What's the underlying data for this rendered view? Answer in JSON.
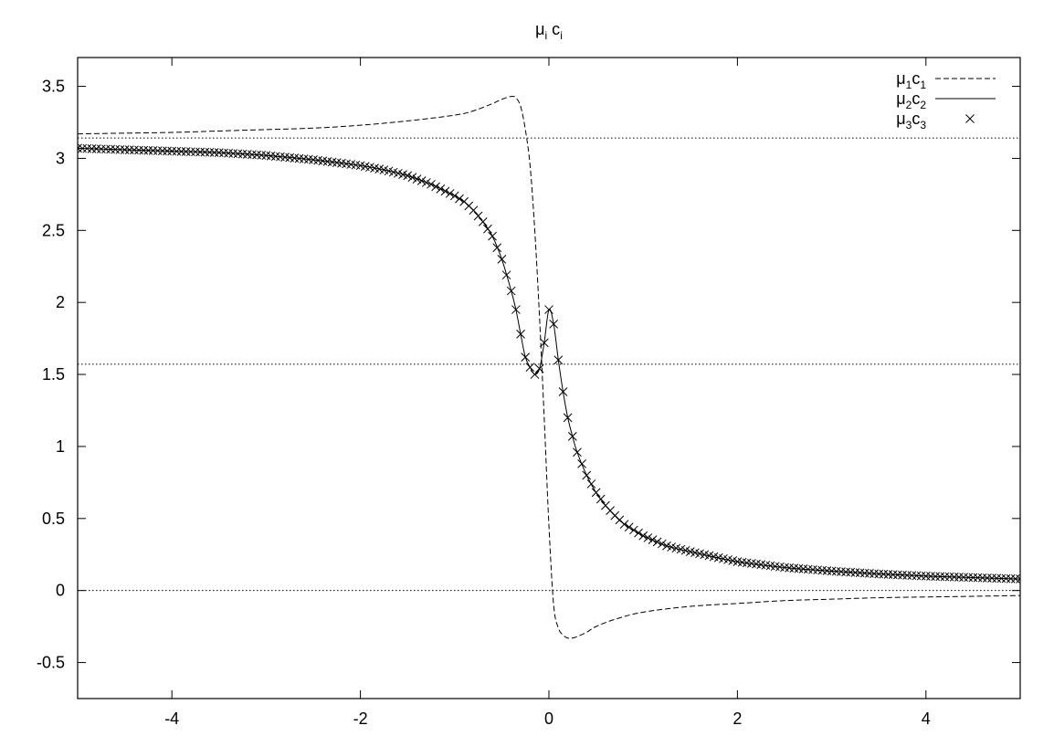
{
  "chart_data": {
    "type": "line",
    "title": {
      "base1": "μ",
      "sub1": "i",
      "base2": " c",
      "sub2": "i"
    },
    "xlabel": "",
    "ylabel": "",
    "xlim": [
      -5,
      5
    ],
    "ylim": [
      -0.75,
      3.7
    ],
    "x_ticks": [
      -4,
      -2,
      0,
      2,
      4
    ],
    "x_tick_labels": [
      "-4",
      "-2",
      "0",
      "2",
      "4"
    ],
    "y_ticks": [
      -0.5,
      0,
      0.5,
      1,
      1.5,
      2,
      2.5,
      3,
      3.5
    ],
    "y_tick_labels": [
      "-0.5",
      "0",
      "0.5",
      "1",
      "1.5",
      "2",
      "2.5",
      "3",
      "3.5"
    ],
    "reference_lines": [
      0,
      1.5708,
      3.1416
    ],
    "grid": false,
    "legend_position": "top-right",
    "series": [
      {
        "key": "mu1c1",
        "label": {
          "a": "μ",
          "a_sub": "1",
          "b": "c",
          "b_sub": "1"
        },
        "style": "dashed",
        "x": [
          -5,
          -4.5,
          -4,
          -3.5,
          -3,
          -2.5,
          -2,
          -1.5,
          -1,
          -0.8,
          -0.6,
          -0.5,
          -0.4,
          -0.35,
          -0.3,
          -0.25,
          -0.2,
          -0.15,
          -0.1,
          -0.05,
          0,
          0.05,
          0.1,
          0.15,
          0.2,
          0.25,
          0.3,
          0.4,
          0.5,
          0.7,
          1,
          1.5,
          2,
          2.5,
          3,
          3.5,
          4,
          4.5,
          5
        ],
        "y": [
          3.17,
          3.175,
          3.18,
          3.19,
          3.2,
          3.21,
          3.23,
          3.26,
          3.3,
          3.33,
          3.38,
          3.41,
          3.43,
          3.42,
          3.36,
          3.2,
          2.95,
          2.5,
          1.9,
          1.2,
          0.45,
          -0.1,
          -0.26,
          -0.31,
          -0.33,
          -0.33,
          -0.32,
          -0.29,
          -0.25,
          -0.2,
          -0.15,
          -0.11,
          -0.09,
          -0.07,
          -0.06,
          -0.05,
          -0.045,
          -0.04,
          -0.035
        ]
      },
      {
        "key": "mu2c2",
        "label": {
          "a": "μ",
          "a_sub": "2",
          "b": "c",
          "b_sub": "2"
        },
        "style": "solid",
        "x": [
          -5,
          -4.5,
          -4,
          -3.5,
          -3,
          -2.5,
          -2,
          -1.75,
          -1.5,
          -1.25,
          -1,
          -0.9,
          -0.8,
          -0.7,
          -0.6,
          -0.5,
          -0.4,
          -0.35,
          -0.3,
          -0.25,
          -0.2,
          -0.15,
          -0.1,
          -0.05,
          0,
          0.05,
          0.1,
          0.15,
          0.2,
          0.25,
          0.3,
          0.4,
          0.5,
          0.6,
          0.7,
          0.8,
          1,
          1.25,
          1.5,
          2,
          2.5,
          3,
          3.5,
          4,
          4.5,
          5
        ],
        "y": [
          3.07,
          3.06,
          3.05,
          3.04,
          3.02,
          2.99,
          2.95,
          2.92,
          2.88,
          2.82,
          2.74,
          2.7,
          2.64,
          2.56,
          2.46,
          2.3,
          2.08,
          1.95,
          1.78,
          1.62,
          1.55,
          1.5,
          1.54,
          1.72,
          1.95,
          1.85,
          1.6,
          1.38,
          1.2,
          1.07,
          0.96,
          0.8,
          0.68,
          0.59,
          0.52,
          0.46,
          0.38,
          0.31,
          0.27,
          0.2,
          0.16,
          0.135,
          0.115,
          0.1,
          0.09,
          0.08
        ]
      },
      {
        "key": "mu3c3",
        "label": {
          "a": "μ",
          "a_sub": "3",
          "b": "c",
          "b_sub": "3"
        },
        "style": "markers",
        "marker": "x",
        "x": [
          -5,
          -4.5,
          -4,
          -3.5,
          -3,
          -2.5,
          -2,
          -1.75,
          -1.5,
          -1.25,
          -1,
          -0.9,
          -0.8,
          -0.7,
          -0.6,
          -0.5,
          -0.4,
          -0.35,
          -0.3,
          -0.25,
          -0.2,
          -0.15,
          -0.1,
          -0.05,
          0,
          0.05,
          0.1,
          0.15,
          0.2,
          0.25,
          0.3,
          0.4,
          0.5,
          0.6,
          0.7,
          0.8,
          1,
          1.25,
          1.5,
          2,
          2.5,
          3,
          3.5,
          4,
          4.5,
          5
        ],
        "y": [
          3.07,
          3.06,
          3.05,
          3.04,
          3.02,
          2.99,
          2.95,
          2.92,
          2.88,
          2.82,
          2.74,
          2.7,
          2.64,
          2.56,
          2.46,
          2.3,
          2.08,
          1.95,
          1.78,
          1.62,
          1.55,
          1.5,
          1.54,
          1.72,
          1.95,
          1.85,
          1.6,
          1.38,
          1.2,
          1.07,
          0.96,
          0.8,
          0.68,
          0.59,
          0.52,
          0.46,
          0.38,
          0.31,
          0.27,
          0.2,
          0.16,
          0.135,
          0.115,
          0.1,
          0.09,
          0.08
        ]
      }
    ]
  }
}
